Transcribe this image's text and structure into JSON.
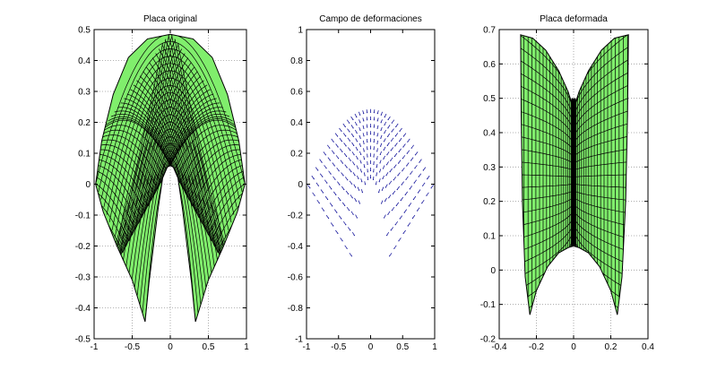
{
  "colors": {
    "plate": "#80ee6c",
    "arrows": "#1a1a9e",
    "edge": "#000000"
  },
  "chart_data": [
    {
      "type": "mesh",
      "title": "Placa original",
      "xlabel": "",
      "ylabel": "",
      "xlim": [
        -1,
        1
      ],
      "ylim": [
        -0.5,
        0.5
      ],
      "xticks": [
        -1,
        -0.5,
        0,
        0.5,
        1
      ],
      "xtick_labels": [
        "-1",
        "-0.5",
        "0",
        "0.5",
        "1"
      ],
      "yticks": [
        -0.5,
        -0.4,
        -0.3,
        -0.2,
        -0.1,
        0,
        0.1,
        0.2,
        0.3,
        0.4,
        0.5
      ],
      "ytick_labels": [
        "-0.5",
        "-0.4",
        "-0.3",
        "-0.2",
        "-0.1",
        "0",
        "0.1",
        "0.2",
        "0.3",
        "0.4",
        "0.5"
      ],
      "grid": true,
      "outline": [
        [
          -0.98,
          0.0
        ],
        [
          -0.9,
          0.14
        ],
        [
          -0.75,
          0.29
        ],
        [
          -0.55,
          0.41
        ],
        [
          -0.3,
          0.47
        ],
        [
          0.0,
          0.485
        ],
        [
          0.3,
          0.47
        ],
        [
          0.55,
          0.41
        ],
        [
          0.75,
          0.29
        ],
        [
          0.9,
          0.14
        ],
        [
          0.98,
          0.0
        ],
        [
          0.88,
          -0.09
        ],
        [
          0.7,
          -0.2
        ],
        [
          0.5,
          -0.31
        ],
        [
          0.33,
          -0.445
        ],
        [
          0.28,
          -0.32
        ],
        [
          0.22,
          -0.2
        ],
        [
          0.16,
          -0.08
        ],
        [
          0.1,
          0.02
        ],
        [
          0.04,
          0.055
        ],
        [
          0.0,
          0.06
        ],
        [
          -0.04,
          0.055
        ],
        [
          -0.1,
          0.02
        ],
        [
          -0.16,
          -0.08
        ],
        [
          -0.22,
          -0.2
        ],
        [
          -0.28,
          -0.32
        ],
        [
          -0.33,
          -0.445
        ],
        [
          -0.5,
          -0.31
        ],
        [
          -0.7,
          -0.2
        ],
        [
          -0.88,
          -0.09
        ],
        [
          -0.98,
          0.0
        ]
      ]
    },
    {
      "type": "quiver",
      "title": "Campo de deformaciones",
      "xlabel": "",
      "ylabel": "",
      "xlim": [
        -1,
        1
      ],
      "ylim": [
        -1,
        1
      ],
      "xticks": [
        -1,
        -0.5,
        0,
        0.5,
        1
      ],
      "xtick_labels": [
        "-1",
        "-0.5",
        "0",
        "0.5",
        "1"
      ],
      "yticks": [
        -1,
        -0.8,
        -0.6,
        -0.4,
        -0.2,
        0,
        0.2,
        0.4,
        0.6,
        0.8,
        1
      ],
      "ytick_labels": [
        "-1",
        "-0.8",
        "-0.6",
        "-0.4",
        "-0.2",
        "0",
        "0.2",
        "0.4",
        "0.6",
        "0.8",
        "1"
      ],
      "grid": false
    },
    {
      "type": "mesh",
      "title": "Placa deformada",
      "xlabel": "",
      "ylabel": "",
      "xlim": [
        -0.4,
        0.4
      ],
      "ylim": [
        -0.2,
        0.7
      ],
      "xticks": [
        -0.4,
        -0.2,
        0,
        0.2,
        0.4
      ],
      "xtick_labels": [
        "-0.4",
        "-0.2",
        "0",
        "0.2",
        "0.4"
      ],
      "yticks": [
        -0.2,
        -0.1,
        0,
        0.1,
        0.2,
        0.3,
        0.4,
        0.5,
        0.6,
        0.7
      ],
      "ytick_labels": [
        "-0.2",
        "-0.1",
        "0",
        "0.1",
        "0.2",
        "0.3",
        "0.4",
        "0.5",
        "0.6",
        "0.7"
      ],
      "grid": true,
      "outline": [
        [
          -0.285,
          0.685
        ],
        [
          -0.22,
          0.675
        ],
        [
          -0.15,
          0.64
        ],
        [
          -0.08,
          0.58
        ],
        [
          -0.03,
          0.52
        ],
        [
          0.0,
          0.47
        ],
        [
          0.03,
          0.52
        ],
        [
          0.08,
          0.58
        ],
        [
          0.15,
          0.64
        ],
        [
          0.22,
          0.675
        ],
        [
          0.295,
          0.685
        ],
        [
          0.29,
          0.45
        ],
        [
          0.28,
          0.2
        ],
        [
          0.26,
          -0.02
        ],
        [
          0.235,
          -0.13
        ],
        [
          0.2,
          -0.06
        ],
        [
          0.14,
          0.01
        ],
        [
          0.08,
          0.05
        ],
        [
          0.03,
          0.065
        ],
        [
          0.0,
          0.07
        ],
        [
          -0.03,
          0.065
        ],
        [
          -0.08,
          0.05
        ],
        [
          -0.14,
          0.01
        ],
        [
          -0.2,
          -0.06
        ],
        [
          -0.235,
          -0.13
        ],
        [
          -0.26,
          -0.02
        ],
        [
          -0.275,
          0.2
        ],
        [
          -0.282,
          0.45
        ],
        [
          -0.285,
          0.685
        ]
      ]
    }
  ]
}
